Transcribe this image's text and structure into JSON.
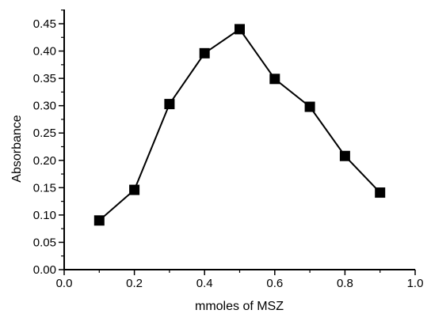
{
  "chart_data": {
    "type": "line",
    "title": "",
    "xlabel": "mmoles of MSZ",
    "ylabel": "Absorbance",
    "xlim": [
      0.0,
      1.0
    ],
    "ylim": [
      0.0,
      0.45
    ],
    "x_ticks": [
      "0.0",
      "0.2",
      "0.4",
      "0.6",
      "0.8",
      "1.0"
    ],
    "y_ticks": [
      "0.00",
      "0.05",
      "0.10",
      "0.15",
      "0.20",
      "0.25",
      "0.30",
      "0.35",
      "0.40",
      "0.45"
    ],
    "grid": false,
    "legend": "none",
    "marker": "square",
    "color": "#000000",
    "series": [
      {
        "x": [
          0.1,
          0.2,
          0.3,
          0.4,
          0.5,
          0.6,
          0.7,
          0.8,
          0.9
        ],
        "y": [
          0.09,
          0.146,
          0.303,
          0.396,
          0.44,
          0.349,
          0.298,
          0.208,
          0.141
        ]
      }
    ]
  }
}
